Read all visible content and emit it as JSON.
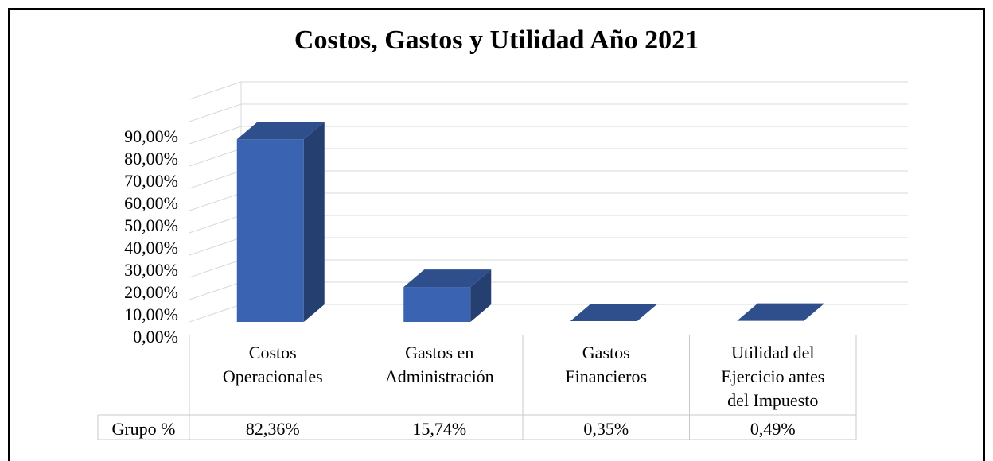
{
  "chart_data": {
    "type": "bar",
    "title": "Costos, Gastos y Utilidad Año 2021",
    "categories": [
      [
        "Costos",
        "Operacionales"
      ],
      [
        "Gastos en",
        "Administración"
      ],
      [
        "Gastos",
        "Financieros"
      ],
      [
        "Utilidad del",
        "Ejercicio antes",
        "del Impuesto"
      ]
    ],
    "series": [
      {
        "name": "Grupo %",
        "values": [
          82.36,
          15.74,
          0.35,
          0.49
        ],
        "labels": [
          "82,36%",
          "15,74%",
          "0,35%",
          "0,49%"
        ]
      }
    ],
    "yticks": [
      "0,00%",
      "10,00%",
      "20,00%",
      "30,00%",
      "40,00%",
      "50,00%",
      "60,00%",
      "70,00%",
      "80,00%",
      "90,00%"
    ],
    "ylim": [
      0,
      90
    ],
    "grid": true,
    "legend": "data-table",
    "colors": {
      "front": "#3a64b2",
      "top": "#2f4f8c",
      "side": "#253f70",
      "grid": "#d9d9d9"
    }
  }
}
